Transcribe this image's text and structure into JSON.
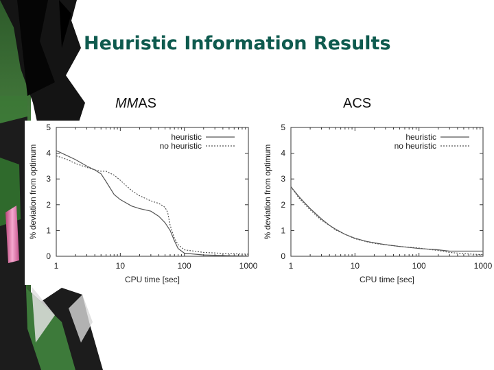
{
  "slide": {
    "title": "Heuristic Information Results",
    "subtitle_left_prefix": "MM",
    "subtitle_left_suffix": "AS",
    "subtitle_right": "ACS"
  },
  "chart_data": [
    {
      "type": "line",
      "title": "MMAS",
      "xlabel": "CPU time [sec]",
      "ylabel": "% deviation from optimum",
      "xscale": "log",
      "xlim": [
        1,
        1000
      ],
      "ylim": [
        0,
        5
      ],
      "xticks": [
        1,
        10,
        100,
        1000
      ],
      "yticks": [
        0,
        1,
        2,
        3,
        4,
        5
      ],
      "grid": false,
      "legend_position": "top-right",
      "series": [
        {
          "name": "heuristic",
          "style": "solid",
          "color": "#555555",
          "x": [
            1,
            1.5,
            2,
            3,
            4,
            5,
            6,
            8,
            10,
            15,
            20,
            30,
            40,
            50,
            60,
            70,
            80,
            100,
            200,
            500,
            1000
          ],
          "y": [
            4.1,
            3.9,
            3.75,
            3.5,
            3.35,
            3.2,
            2.9,
            2.4,
            2.2,
            1.95,
            1.85,
            1.75,
            1.55,
            1.3,
            1.0,
            0.6,
            0.3,
            0.12,
            0.05,
            0.02,
            0.01
          ]
        },
        {
          "name": "no heuristic",
          "style": "dotted",
          "color": "#555555",
          "x": [
            1,
            1.5,
            2,
            3,
            4,
            5,
            6,
            8,
            10,
            15,
            20,
            30,
            40,
            50,
            55,
            60,
            70,
            80,
            100,
            200,
            500,
            1000
          ],
          "y": [
            3.9,
            3.75,
            3.6,
            3.45,
            3.35,
            3.3,
            3.3,
            3.15,
            2.95,
            2.55,
            2.35,
            2.15,
            2.05,
            1.9,
            1.7,
            1.2,
            0.7,
            0.45,
            0.25,
            0.15,
            0.1,
            0.08
          ]
        }
      ]
    },
    {
      "type": "line",
      "title": "ACS",
      "xlabel": "CPU time [sec]",
      "ylabel": "% deviation from optimum",
      "xscale": "log",
      "xlim": [
        1,
        1000
      ],
      "ylim": [
        0,
        5
      ],
      "xticks": [
        1,
        10,
        100,
        1000
      ],
      "yticks": [
        0,
        1,
        2,
        3,
        4,
        5
      ],
      "grid": false,
      "legend_position": "top-right",
      "series": [
        {
          "name": "heuristic",
          "style": "solid",
          "color": "#555555",
          "x": [
            1,
            1.3,
            1.6,
            2,
            3,
            4,
            5,
            7,
            10,
            15,
            20,
            30,
            50,
            100,
            200,
            300,
            500,
            1000
          ],
          "y": [
            2.7,
            2.35,
            2.1,
            1.85,
            1.45,
            1.2,
            1.05,
            0.85,
            0.7,
            0.58,
            0.52,
            0.45,
            0.38,
            0.3,
            0.25,
            0.2,
            0.2,
            0.2
          ]
        },
        {
          "name": "no heuristic",
          "style": "dotted",
          "color": "#555555",
          "x": [
            1,
            1.3,
            1.6,
            2,
            3,
            4,
            5,
            7,
            10,
            15,
            20,
            30,
            50,
            100,
            200,
            300,
            500,
            1000
          ],
          "y": [
            2.7,
            2.3,
            2.05,
            1.8,
            1.4,
            1.2,
            1.02,
            0.85,
            0.68,
            0.57,
            0.5,
            0.45,
            0.38,
            0.32,
            0.22,
            0.15,
            0.1,
            0.06
          ]
        }
      ]
    }
  ],
  "colors": {
    "title": "#0e5a4e",
    "curve": "#555555"
  }
}
